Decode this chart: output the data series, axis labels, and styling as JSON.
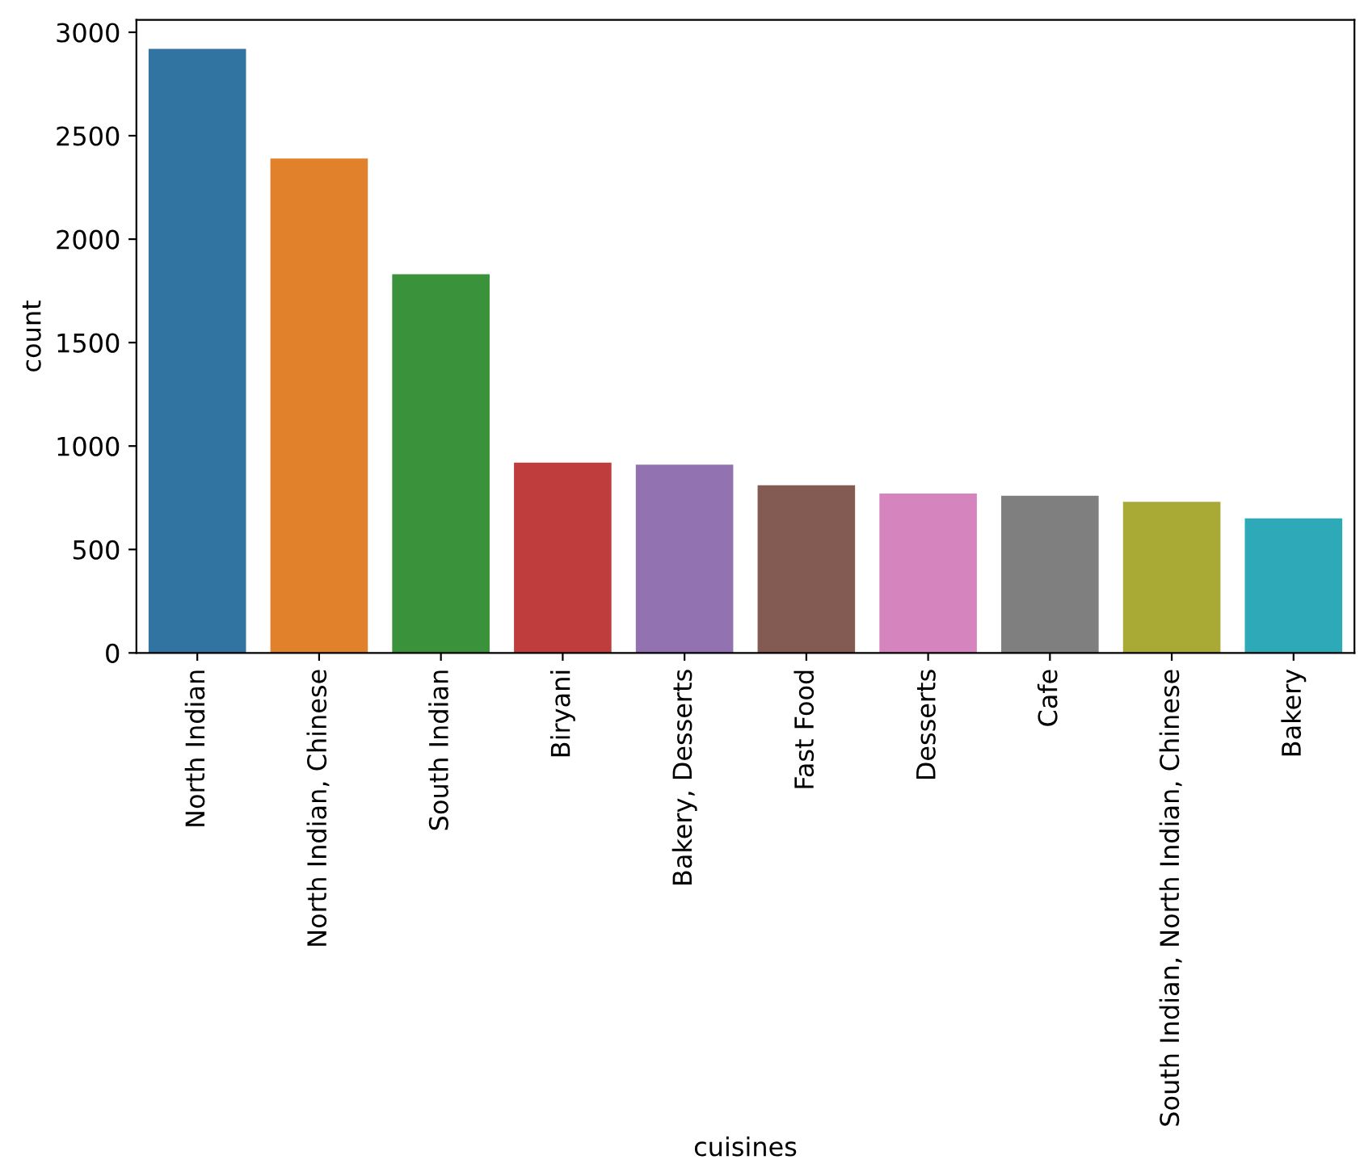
{
  "chart_data": {
    "type": "bar",
    "xlabel": "cuisines",
    "ylabel": "count",
    "categories": [
      "North Indian",
      "North Indian, Chinese",
      "South Indian",
      "Biryani",
      "Bakery, Desserts",
      "Fast Food",
      "Desserts",
      "Cafe",
      "South Indian, North Indian, Chinese",
      "Bakery"
    ],
    "values": [
      2920,
      2390,
      1830,
      920,
      910,
      810,
      770,
      760,
      730,
      650
    ],
    "colors": [
      "#3274a1",
      "#e1812c",
      "#3a923a",
      "#c03d3e",
      "#9372b2",
      "#845b53",
      "#d684bd",
      "#7f7f7f",
      "#a9aa35",
      "#2ea9b8"
    ],
    "ylim": [
      0,
      3060
    ],
    "yticks": [
      0,
      500,
      1000,
      1500,
      2000,
      2500,
      3000
    ],
    "grid": false
  }
}
